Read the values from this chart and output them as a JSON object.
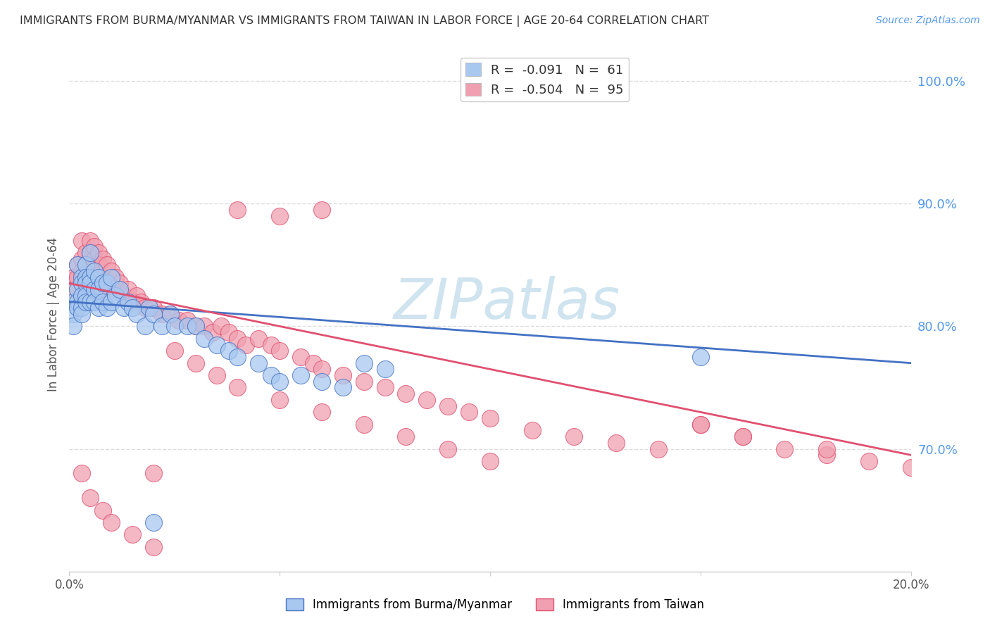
{
  "title": "IMMIGRANTS FROM BURMA/MYANMAR VS IMMIGRANTS FROM TAIWAN IN LABOR FORCE | AGE 20-64 CORRELATION CHART",
  "source": "Source: ZipAtlas.com",
  "ylabel": "In Labor Force | Age 20-64",
  "xlim": [
    0.0,
    0.2
  ],
  "ylim": [
    0.6,
    1.02
  ],
  "right_ytick_labels": [
    "100.0%",
    "90.0%",
    "80.0%",
    "70.0%"
  ],
  "right_ytick_values": [
    1.0,
    0.9,
    0.8,
    0.7
  ],
  "watermark": "ZIPatlas",
  "legend_entries": [
    {
      "label": "R =  -0.091   N =  61",
      "color": "#a8c8f0"
    },
    {
      "label": "R =  -0.504   N =  95",
      "color": "#f0a0b0"
    }
  ],
  "series_burma": {
    "color": "#a8c8f0",
    "edge_color": "#4472c4",
    "x": [
      0.001,
      0.001,
      0.001,
      0.002,
      0.002,
      0.002,
      0.002,
      0.003,
      0.003,
      0.003,
      0.003,
      0.003,
      0.004,
      0.004,
      0.004,
      0.004,
      0.004,
      0.005,
      0.005,
      0.005,
      0.005,
      0.006,
      0.006,
      0.006,
      0.007,
      0.007,
      0.007,
      0.008,
      0.008,
      0.009,
      0.009,
      0.01,
      0.01,
      0.011,
      0.012,
      0.013,
      0.014,
      0.015,
      0.016,
      0.018,
      0.019,
      0.02,
      0.022,
      0.024,
      0.025,
      0.028,
      0.03,
      0.032,
      0.035,
      0.038,
      0.04,
      0.045,
      0.048,
      0.05,
      0.055,
      0.06,
      0.065,
      0.07,
      0.075,
      0.15,
      0.02
    ],
    "y": [
      0.82,
      0.81,
      0.8,
      0.85,
      0.83,
      0.82,
      0.815,
      0.84,
      0.835,
      0.825,
      0.815,
      0.81,
      0.85,
      0.84,
      0.835,
      0.825,
      0.82,
      0.86,
      0.84,
      0.835,
      0.82,
      0.845,
      0.83,
      0.82,
      0.84,
      0.83,
      0.815,
      0.835,
      0.82,
      0.835,
      0.815,
      0.84,
      0.82,
      0.825,
      0.83,
      0.815,
      0.82,
      0.815,
      0.81,
      0.8,
      0.815,
      0.81,
      0.8,
      0.81,
      0.8,
      0.8,
      0.8,
      0.79,
      0.785,
      0.78,
      0.775,
      0.77,
      0.76,
      0.755,
      0.76,
      0.755,
      0.75,
      0.77,
      0.765,
      0.775,
      0.64
    ]
  },
  "series_taiwan": {
    "color": "#f0a0b0",
    "edge_color": "#e05070",
    "x": [
      0.001,
      0.001,
      0.002,
      0.002,
      0.003,
      0.003,
      0.003,
      0.004,
      0.004,
      0.004,
      0.004,
      0.005,
      0.005,
      0.005,
      0.005,
      0.006,
      0.006,
      0.006,
      0.007,
      0.007,
      0.007,
      0.008,
      0.008,
      0.008,
      0.009,
      0.009,
      0.01,
      0.01,
      0.011,
      0.012,
      0.013,
      0.014,
      0.015,
      0.016,
      0.017,
      0.018,
      0.02,
      0.022,
      0.024,
      0.026,
      0.028,
      0.03,
      0.032,
      0.034,
      0.036,
      0.038,
      0.04,
      0.042,
      0.045,
      0.048,
      0.05,
      0.055,
      0.058,
      0.06,
      0.065,
      0.07,
      0.075,
      0.08,
      0.085,
      0.09,
      0.095,
      0.1,
      0.11,
      0.12,
      0.13,
      0.14,
      0.15,
      0.16,
      0.17,
      0.18,
      0.19,
      0.2,
      0.003,
      0.005,
      0.008,
      0.01,
      0.015,
      0.02,
      0.025,
      0.03,
      0.035,
      0.04,
      0.05,
      0.06,
      0.07,
      0.08,
      0.09,
      0.1,
      0.04,
      0.05,
      0.06,
      0.15,
      0.16,
      0.18,
      0.02
    ],
    "y": [
      0.84,
      0.83,
      0.85,
      0.84,
      0.87,
      0.855,
      0.845,
      0.86,
      0.85,
      0.84,
      0.83,
      0.87,
      0.86,
      0.85,
      0.84,
      0.865,
      0.855,
      0.84,
      0.86,
      0.85,
      0.835,
      0.855,
      0.84,
      0.83,
      0.85,
      0.835,
      0.845,
      0.83,
      0.84,
      0.835,
      0.825,
      0.83,
      0.82,
      0.825,
      0.82,
      0.815,
      0.815,
      0.81,
      0.81,
      0.805,
      0.805,
      0.8,
      0.8,
      0.795,
      0.8,
      0.795,
      0.79,
      0.785,
      0.79,
      0.785,
      0.78,
      0.775,
      0.77,
      0.765,
      0.76,
      0.755,
      0.75,
      0.745,
      0.74,
      0.735,
      0.73,
      0.725,
      0.715,
      0.71,
      0.705,
      0.7,
      0.72,
      0.71,
      0.7,
      0.695,
      0.69,
      0.685,
      0.68,
      0.66,
      0.65,
      0.64,
      0.63,
      0.62,
      0.78,
      0.77,
      0.76,
      0.75,
      0.74,
      0.73,
      0.72,
      0.71,
      0.7,
      0.69,
      0.895,
      0.89,
      0.895,
      0.72,
      0.71,
      0.7,
      0.68
    ]
  },
  "background_color": "#ffffff",
  "grid_color": "#dddddd",
  "title_color": "#333333",
  "right_label_color": "#5599ee",
  "watermark_color": "#d0e4f0"
}
